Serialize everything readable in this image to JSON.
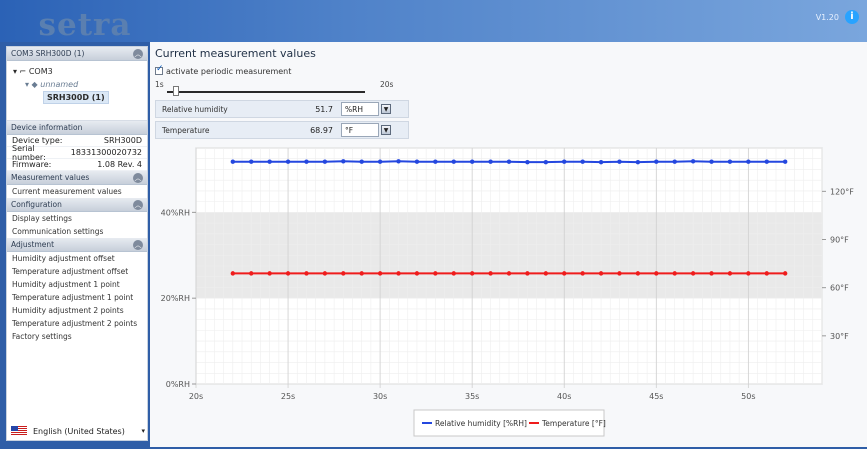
{
  "app": {
    "logo_text": "setra",
    "version": "V1.20",
    "info_icon": "info-icon"
  },
  "left": {
    "device_section": "COM3 SRH300D (1)",
    "tree": {
      "port": "COM3",
      "name": "unnamed",
      "device": "SRH300D (1)"
    },
    "device_info": {
      "title": "Device information",
      "rows": [
        {
          "label": "Device type:",
          "value": "SRH300D"
        },
        {
          "label": "Serial number:",
          "value": "18331300020732"
        },
        {
          "label": "Firmware:",
          "value": "1.08 Rev. 4"
        }
      ]
    },
    "sections": [
      {
        "title": "Measurement values",
        "items": [
          "Current measurement values"
        ]
      },
      {
        "title": "Configuration",
        "items": [
          "Display settings",
          "Communication settings"
        ]
      },
      {
        "title": "Adjustment",
        "items": [
          "Humidity adjustment offset",
          "Temperature adjustment offset",
          "Humidity adjustment 1 point",
          "Temperature adjustment 1 point",
          "Humidity adjustment 2 points",
          "Temperature adjustment 2 points",
          "Factory settings"
        ]
      }
    ],
    "language": "English (United States)"
  },
  "main": {
    "title": "Current measurement values",
    "periodic_label": "activate periodic measurement",
    "slider_min": "1s",
    "slider_max": "20s",
    "slider_value": 1,
    "measurements": [
      {
        "label": "Relative humidity",
        "value": "51.7",
        "unit": "%RH"
      },
      {
        "label": "Temperature",
        "value": "68.97",
        "unit": "°F"
      }
    ]
  },
  "chart_data": {
    "type": "line",
    "x_ticks": [
      "20s",
      "25s",
      "30s",
      "35s",
      "40s",
      "45s",
      "50s"
    ],
    "y_left_ticks": [
      "0%RH",
      "20%RH",
      "40%RH"
    ],
    "y_right_ticks": [
      "30°F",
      "60°F",
      "90°F",
      "120°F"
    ],
    "x": [
      22,
      23,
      24,
      25,
      26,
      27,
      28,
      29,
      30,
      31,
      32,
      33,
      34,
      35,
      36,
      37,
      38,
      39,
      40,
      41,
      42,
      43,
      44,
      45,
      46,
      47,
      48,
      49,
      50,
      51,
      52
    ],
    "series": [
      {
        "name": "Relative humidity [%RH]",
        "color": "#2447df",
        "values": [
          51.8,
          51.8,
          51.8,
          51.8,
          51.8,
          51.8,
          51.9,
          51.8,
          51.8,
          51.9,
          51.8,
          51.8,
          51.8,
          51.8,
          51.8,
          51.8,
          51.7,
          51.7,
          51.8,
          51.8,
          51.7,
          51.8,
          51.7,
          51.8,
          51.8,
          51.9,
          51.8,
          51.8,
          51.8,
          51.8,
          51.8
        ]
      },
      {
        "name": "Temperature [°F]",
        "color": "#ef1c1c",
        "values": [
          68.9,
          68.9,
          68.9,
          68.9,
          68.9,
          68.9,
          68.9,
          68.9,
          68.9,
          68.9,
          68.9,
          68.9,
          68.9,
          68.9,
          68.9,
          68.9,
          68.9,
          68.9,
          68.9,
          68.9,
          68.9,
          68.9,
          68.9,
          68.9,
          68.9,
          68.9,
          68.9,
          68.9,
          68.9,
          68.9,
          68.9
        ]
      }
    ],
    "x_range": [
      20,
      54
    ],
    "y_left_range": [
      0,
      55
    ],
    "y_right_range": [
      0,
      147
    ],
    "grid": true,
    "legend": "bottom-center"
  }
}
